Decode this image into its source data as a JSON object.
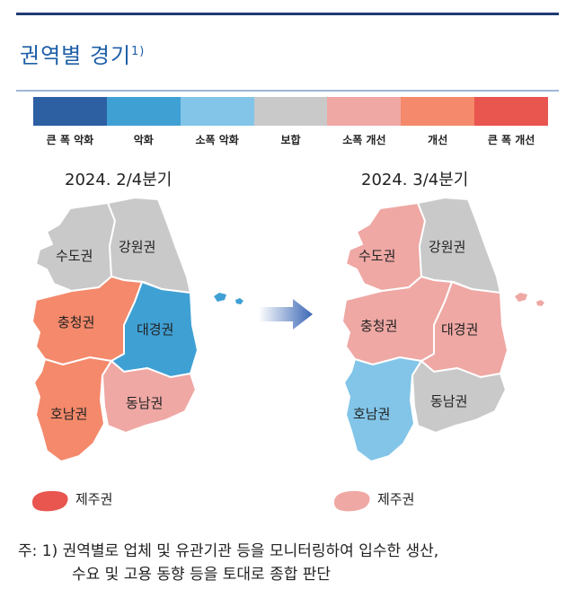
{
  "title": "권역별 경기",
  "title_sup": "1)",
  "colors": {
    "title": "#1f5fa8",
    "scale": [
      "#2d5fa3",
      "#3fa0d4",
      "#82c5e8",
      "#c9c9c9",
      "#efa8a4",
      "#f4896b",
      "#e9554f"
    ]
  },
  "legend": [
    {
      "label": "큰 폭 악화"
    },
    {
      "label": "악화"
    },
    {
      "label": "소폭 악화"
    },
    {
      "label": "보합"
    },
    {
      "label": "소폭 개선"
    },
    {
      "label": "개선"
    },
    {
      "label": "큰 폭 개선"
    }
  ],
  "maps": [
    {
      "period": "2024. 2/4분기",
      "regions": {
        "capital": {
          "label": "수도권",
          "status": "보합",
          "color": "#c9c9c9"
        },
        "gangwon": {
          "label": "강원권",
          "status": "보합",
          "color": "#c9c9c9"
        },
        "chungcheong": {
          "label": "충청권",
          "status": "개선",
          "color": "#f4896b"
        },
        "daegyeong": {
          "label": "대경권",
          "status": "악화",
          "color": "#3fa0d4"
        },
        "honam": {
          "label": "호남권",
          "status": "개선",
          "color": "#f4896b"
        },
        "dongnam": {
          "label": "동남권",
          "status": "소폭 개선",
          "color": "#efa8a4"
        },
        "jeju": {
          "label": "제주권",
          "status": "큰 폭 개선",
          "color": "#e9554f"
        }
      }
    },
    {
      "period": "2024. 3/4분기",
      "regions": {
        "capital": {
          "label": "수도권",
          "status": "소폭 개선",
          "color": "#efa8a4"
        },
        "gangwon": {
          "label": "강원권",
          "status": "보합",
          "color": "#c9c9c9"
        },
        "chungcheong": {
          "label": "충청권",
          "status": "소폭 개선",
          "color": "#efa8a4"
        },
        "daegyeong": {
          "label": "대경권",
          "status": "소폭 개선",
          "color": "#efa8a4"
        },
        "honam": {
          "label": "호남권",
          "status": "소폭 악화",
          "color": "#82c5e8"
        },
        "dongnam": {
          "label": "동남권",
          "status": "보합",
          "color": "#c9c9c9"
        },
        "jeju": {
          "label": "제주권",
          "status": "소폭 개선",
          "color": "#efa8a4"
        }
      }
    }
  ],
  "note": {
    "line1": "주: 1) 권역별로 업체 및 유관기관 등을 모니터링하여 입수한 생산,",
    "line2": "수요 및 고용 동향 등을 토대로 종합 판단"
  }
}
